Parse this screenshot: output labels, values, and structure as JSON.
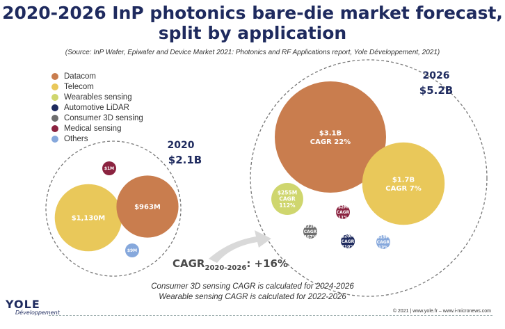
{
  "title_line1": "2020-2026 InP photonics bare-die market forecast,",
  "title_line2": "split by application",
  "source": "(Source: InP Wafer, Epiwafer and Device Market 2021: Photonics and RF Applications report, Yole Développement, 2021)",
  "legend": [
    {
      "label": "Datacom",
      "color": "#c97d4e"
    },
    {
      "label": "Telecom",
      "color": "#e9c85a"
    },
    {
      "label": "Wearables sensing",
      "color": "#cfd66e"
    },
    {
      "label": "Automotive LiDAR",
      "color": "#1e2a5e"
    },
    {
      "label": "Consumer 3D sensing",
      "color": "#6e6e6e"
    },
    {
      "label": "Medical sensing",
      "color": "#8b2340"
    },
    {
      "label": "Others",
      "color": "#86a8dc"
    }
  ],
  "cagr": {
    "prefix": "CAGR",
    "sub": "2020-2026",
    "value": ": +16%"
  },
  "notes": [
    "Consumer 3D sensing CAGR is calculated for 2024-2026",
    "Wearable sensing CAGR is calculated for 2022-2026"
  ],
  "footer": "© 2021 | www.yole.fr – www.i-micronews.com",
  "logo": {
    "top": "YOLE",
    "bottom": "Développement"
  },
  "chart_data": {
    "type": "bubble",
    "groups": [
      {
        "year": "2020",
        "total": "$2.1B",
        "bubbles": [
          {
            "category": "Telecom",
            "value_musd": 1130,
            "label": "$1,130M",
            "cagr": ""
          },
          {
            "category": "Datacom",
            "value_musd": 963,
            "label": "$963M",
            "cagr": ""
          },
          {
            "category": "Medical sensing",
            "value_musd": 1,
            "label": "$1M",
            "cagr": ""
          },
          {
            "category": "Others",
            "value_musd": 9,
            "label": "$9M",
            "cagr": ""
          }
        ]
      },
      {
        "year": "2026",
        "total": "$5.2B",
        "bubbles": [
          {
            "category": "Datacom",
            "value_musd": 3100,
            "label": "$3.1B",
            "cagr": "CAGR 22%"
          },
          {
            "category": "Telecom",
            "value_musd": 1700,
            "label": "$1.7B",
            "cagr": "CAGR 7%"
          },
          {
            "category": "Wearables sensing",
            "value_musd": 255,
            "label": "$255M",
            "cagr": "CAGR 112%"
          },
          {
            "category": "Medical sensing",
            "value_musd": 2,
            "label": "$2M",
            "cagr": "CAGR 11%"
          },
          {
            "category": "Consumer 3D sensing",
            "value_musd": 22,
            "label": "$22M",
            "cagr": "CAGR 467%"
          },
          {
            "category": "Automotive LiDAR",
            "value_musd": 20,
            "label": "$20M",
            "cagr": "CAGR 210%"
          },
          {
            "category": "Others",
            "value_musd": 19,
            "label": "$19M",
            "cagr": "CAGR 13%"
          }
        ]
      }
    ]
  }
}
